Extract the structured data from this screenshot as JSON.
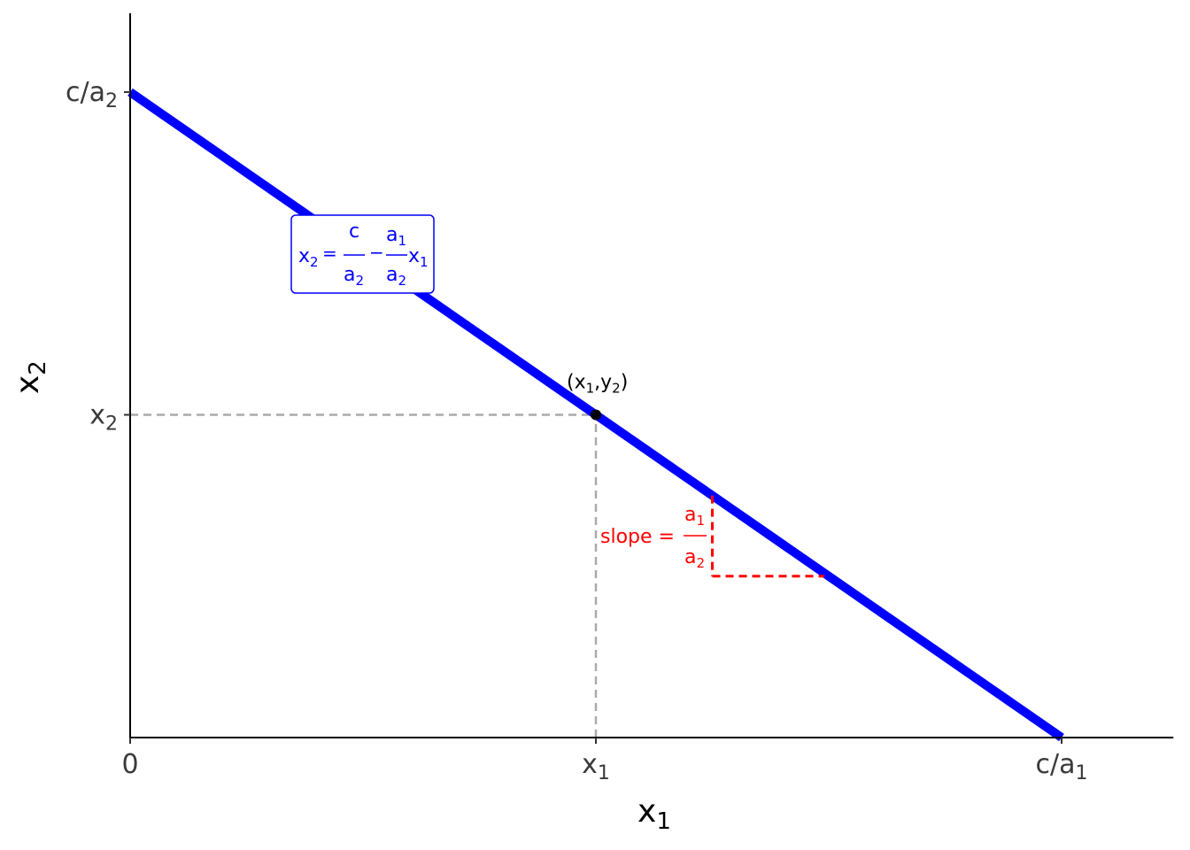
{
  "chart_data": {
    "type": "line",
    "title": "",
    "xlabel": {
      "base": "x",
      "sub": "1"
    },
    "ylabel": {
      "base": "x",
      "sub": "2"
    },
    "xlim": [
      0,
      1.12
    ],
    "ylim": [
      0,
      1.12
    ],
    "grid": false,
    "legend": "none",
    "x_ticks": [
      {
        "value": 0,
        "base": "0",
        "sub": ""
      },
      {
        "value": 0.5,
        "base": "x",
        "sub": "1"
      },
      {
        "value": 1,
        "base": "c/a",
        "sub": "1"
      }
    ],
    "y_ticks": [
      {
        "value": 0.5,
        "base": "x",
        "sub": "2"
      },
      {
        "value": 1,
        "base": "c/a",
        "sub": "2"
      }
    ],
    "series": [
      {
        "color": "#0000ff",
        "x": [
          0,
          1
        ],
        "y": [
          1,
          0
        ]
      }
    ],
    "point": {
      "x": 0.5,
      "y": 0.5,
      "label": {
        "pre": "(x",
        "s1": "1",
        "mid": ",y",
        "s2": "2",
        "post": ")"
      }
    },
    "guides": [
      {
        "from": [
          0,
          0.5
        ],
        "to": [
          0.5,
          0.5
        ],
        "color": "#aaaaaa"
      },
      {
        "from": [
          0.5,
          0
        ],
        "to": [
          0.5,
          0.5
        ],
        "color": "#aaaaaa"
      }
    ],
    "slope_triangle": {
      "color": "#ff0000",
      "vertical": {
        "from": [
          0.625,
          0.375
        ],
        "to": [
          0.625,
          0.25
        ]
      },
      "horizontal": {
        "from": [
          0.625,
          0.25
        ],
        "to": [
          0.745,
          0.25
        ]
      }
    },
    "annotations": {
      "equation": {
        "color": "#0000ff",
        "lhs": {
          "base": "x",
          "sub": "2"
        },
        "eq": "=",
        "frac1": {
          "num": "c",
          "den_base": "a",
          "den_sub": "2"
        },
        "minus": "−",
        "frac2": {
          "num_base": "a",
          "num_sub": "1",
          "den_base": "a",
          "den_sub": "2"
        },
        "rhs": {
          "base": "x",
          "sub": "1"
        }
      },
      "slope": {
        "color": "#ff0000",
        "text": "slope =",
        "frac": {
          "num_base": "a",
          "num_sub": "1",
          "den_base": "a",
          "den_sub": "2"
        }
      }
    }
  }
}
